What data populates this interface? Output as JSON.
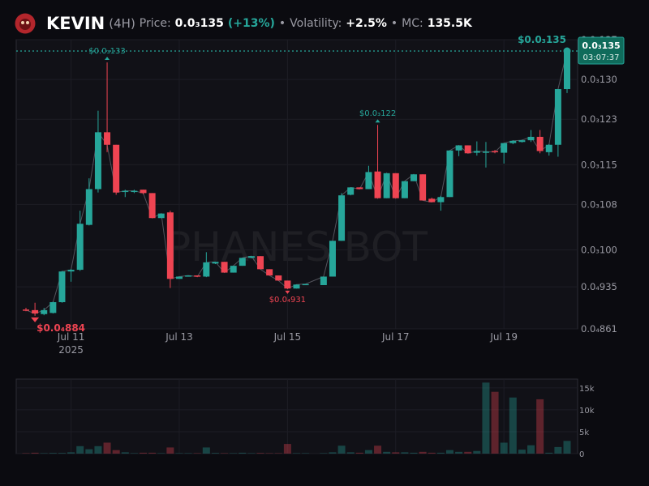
{
  "header": {
    "name": "KEVIN",
    "interval": "(4H)",
    "price_label": "Price:",
    "price": "0.0₃135",
    "change": "(+13%)",
    "separator": "•",
    "volatility_label": "Volatility:",
    "volatility": "+2.5%",
    "mc_label": "MC:",
    "mc": "135.5K"
  },
  "chart_data": {
    "type": "candlestick",
    "watermark": "PHANES BOT",
    "up_color": "#26a69a",
    "down_color": "#ef4452",
    "grid": true,
    "categories": [
      null,
      null,
      null,
      null,
      null,
      "Jul 11",
      null,
      null,
      null,
      null,
      null,
      null,
      null,
      null,
      null,
      null,
      null,
      "Jul 13",
      null,
      null,
      null,
      null,
      null,
      null,
      null,
      null,
      null,
      null,
      null,
      "Jul 15",
      null,
      null,
      null,
      null,
      null,
      null,
      null,
      null,
      null,
      null,
      null,
      "Jul 17",
      null,
      null,
      null,
      null,
      null,
      null,
      null,
      null,
      null,
      null,
      null,
      "Jul 19",
      null,
      null,
      null,
      null,
      null,
      null,
      null
    ],
    "year_label": "2025",
    "open": [
      8.95e-05,
      8.94e-05,
      8.87e-05,
      8.89e-05,
      9.08e-05,
      9.62e-05,
      9.65e-05,
      0.0001044,
      0.0001107,
      0.0001207,
      0.0001185,
      0.0001103,
      0.0001103,
      0.0001106,
      0.00011,
      0.0001056,
      0.0001066,
      9.49e-05,
      9.54e-05,
      9.55e-05,
      9.53e-05,
      9.76e-05,
      9.79e-05,
      9.6e-05,
      9.72e-05,
      9.86e-05,
      9.89e-05,
      9.66e-05,
      9.55e-05,
      9.46e-05,
      9.32e-05,
      9.39e-05,
      null,
      9.38e-05,
      9.53e-05,
      0.0001016,
      0.0001097,
      0.000111,
      0.0001107,
      0.0001138,
      0.0001091,
      0.0001135,
      0.0001091,
      0.0001121,
      0.0001133,
      0.000109,
      0.0001084,
      0.0001093,
      0.0001175,
      0.0001184,
      0.0001171,
      0.0001172,
      0.0001174,
      0.0001171,
      0.0001188,
      0.000119,
      0.0001193,
      0.0001199,
      0.0001172,
      0.0001185,
      0.0001283
    ],
    "high": [
      8.98e-05,
      9.07e-05,
      8.98e-05,
      9.09e-05,
      9.63e-05,
      9.66e-05,
      0.0001069,
      0.0001126,
      0.0001245,
      0.000133,
      0.0001185,
      0.0001106,
      0.0001106,
      0.0001106,
      0.00011,
      0.0001064,
      0.0001069,
      9.53e-05,
      9.55e-05,
      9.55e-05,
      9.96e-05,
      9.79e-05,
      9.79e-05,
      9.72e-05,
      9.86e-05,
      9.89e-05,
      9.89e-05,
      9.66e-05,
      9.55e-05,
      9.46e-05,
      9.39e-05,
      9.4e-05,
      null,
      9.53e-05,
      0.0001016,
      0.00011,
      0.000111,
      0.000111,
      0.0001148,
      0.000122,
      0.0001135,
      0.0001135,
      0.0001121,
      0.0001133,
      0.0001133,
      0.0001092,
      0.0001095,
      0.0001175,
      0.0001184,
      0.0001184,
      0.0001191,
      0.000119,
      0.0001176,
      0.0001188,
      0.0001193,
      0.0001194,
      0.0001211,
      0.0001211,
      0.0001186,
      0.0001283,
      0.0001355
    ],
    "low": [
      8.92e-05,
      8.84e-05,
      8.85e-05,
      8.88e-05,
      9.07e-05,
      9.44e-05,
      9.63e-05,
      0.0001043,
      0.0001101,
      0.0001172,
      0.0001097,
      0.0001093,
      0.00011,
      0.0001098,
      0.0001056,
      0.0001056,
      9.33e-05,
      9.49e-05,
      9.53e-05,
      9.52e-05,
      9.52e-05,
      9.75e-05,
      9.6e-05,
      9.6e-05,
      9.72e-05,
      9.85e-05,
      9.66e-05,
      9.55e-05,
      9.46e-05,
      9.31e-05,
      9.32e-05,
      9.39e-05,
      null,
      9.38e-05,
      9.53e-05,
      0.0001016,
      0.0001096,
      0.0001107,
      0.0001107,
      0.0001091,
      0.0001091,
      0.0001091,
      0.0001091,
      0.0001121,
      0.0001087,
      0.0001084,
      0.0001069,
      0.0001093,
      0.0001165,
      0.000117,
      0.0001166,
      0.0001145,
      0.000117,
      0.0001152,
      0.0001186,
      0.0001189,
      0.000119,
      0.000117,
      0.0001166,
      0.0001164,
      0.0001276
    ],
    "close": [
      8.94e-05,
      8.88e-05,
      8.94e-05,
      9.08e-05,
      9.62e-05,
      9.65e-05,
      0.0001046,
      0.0001107,
      0.0001207,
      0.0001185,
      0.0001101,
      0.0001104,
      0.0001104,
      0.00011,
      0.0001056,
      0.0001064,
      9.49e-05,
      9.53e-05,
      9.55e-05,
      9.53e-05,
      9.78e-05,
      9.79e-05,
      9.6e-05,
      9.72e-05,
      9.86e-05,
      9.89e-05,
      9.66e-05,
      9.55e-05,
      9.46e-05,
      9.32e-05,
      9.39e-05,
      9.4e-05,
      null,
      9.53e-05,
      0.0001016,
      0.0001096,
      0.000111,
      0.0001107,
      0.0001137,
      0.0001091,
      0.0001135,
      0.0001091,
      0.0001121,
      0.0001133,
      0.0001087,
      0.0001084,
      0.0001093,
      0.0001175,
      0.0001184,
      0.000117,
      0.0001174,
      0.0001173,
      0.0001172,
      0.0001188,
      0.0001192,
      0.0001193,
      0.0001199,
      0.0001174,
      0.0001185,
      0.0001283,
      0.000135
    ],
    "volume": [
      100,
      200,
      100,
      150,
      150,
      300,
      1700,
      1000,
      1700,
      2500,
      800,
      300,
      100,
      200,
      200,
      100,
      1400,
      100,
      100,
      100,
      1400,
      150,
      100,
      100,
      200,
      100,
      150,
      100,
      100,
      2200,
      100,
      100,
      null,
      100,
      300,
      1800,
      300,
      200,
      800,
      1800,
      400,
      300,
      300,
      200,
      400,
      200,
      200,
      800,
      400,
      400,
      600,
      16200,
      14100,
      2500,
      12800,
      900,
      1900,
      12400,
      200,
      1500,
      2900
    ],
    "ylim": [
      8.61e-05,
      0.000137
    ],
    "yticks": [
      {
        "value": 0.000137,
        "label": "0.0₃137"
      },
      {
        "value": 0.00013,
        "label": "0.0₃130"
      },
      {
        "value": 0.000123,
        "label": "0.0₃123"
      },
      {
        "value": 0.000115,
        "label": "0.0₃115"
      },
      {
        "value": 0.000108,
        "label": "0.0₃108"
      },
      {
        "value": 0.0001,
        "label": "0.0₃100"
      },
      {
        "value": 9.35e-05,
        "label": "0.0₄935"
      },
      {
        "value": 8.61e-05,
        "label": "0.0₄861"
      }
    ],
    "volume_lim": [
      0,
      17000
    ],
    "volume_ticks": [
      0,
      {
        "value": 5000,
        "label": "5k"
      },
      {
        "value": 10000,
        "label": "10k"
      },
      {
        "value": 15000,
        "label": "15k"
      }
    ],
    "annotations": [
      {
        "label": "$0.0₃133",
        "value": 0.000133
      },
      {
        "label": "$0.0₄884",
        "value": 8.84e-05
      },
      {
        "label": "$0.0₄931",
        "value": 9.31e-05
      },
      {
        "label": "$0.0₃122",
        "value": 0.000122
      }
    ],
    "last_price": {
      "label": "0.0₃135",
      "annotation": "$0.0₃135",
      "value": 0.000135,
      "countdown": "03:07:37"
    }
  }
}
